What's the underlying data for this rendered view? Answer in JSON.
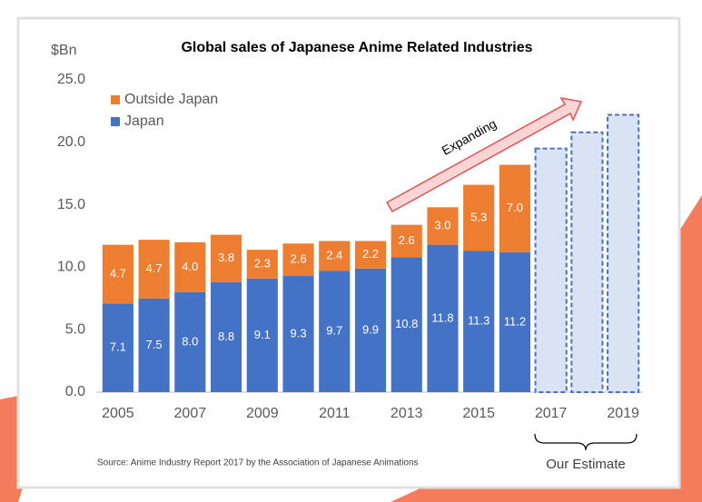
{
  "chart_data": {
    "type": "stacked_bar",
    "title": "Global sales of Japanese Anime Related Industries",
    "y_label": "$Bn",
    "categories": [
      "2005",
      null,
      "2007",
      null,
      "2009",
      null,
      "2011",
      null,
      "2013",
      null,
      "2015",
      null,
      "2017",
      null,
      "2019"
    ],
    "series": [
      {
        "name": "Japan",
        "color": "#4472c4",
        "values": [
          7.1,
          7.5,
          8.0,
          8.8,
          9.1,
          9.3,
          9.7,
          9.9,
          10.8,
          11.8,
          11.3,
          11.2,
          null,
          null,
          null
        ],
        "value_labels": [
          "7.1",
          "7.5",
          "8.0",
          "8.8",
          "9.1",
          "9.3",
          "9.7",
          "9.9",
          "10.8",
          "11.8",
          "11.3",
          "11.2",
          null,
          null,
          null
        ]
      },
      {
        "name": "Outside Japan",
        "color": "#ed7d31",
        "values": [
          4.7,
          4.7,
          4.0,
          3.8,
          2.3,
          2.6,
          2.4,
          2.2,
          2.6,
          3.0,
          5.3,
          7.0,
          null,
          null,
          null
        ],
        "value_labels": [
          "4.7",
          "4.7",
          "4.0",
          "3.8",
          "2.3",
          "2.6",
          "2.4",
          "2.2",
          "2.6",
          "3.0",
          "5.3",
          "7.0",
          null,
          null,
          null
        ]
      }
    ],
    "estimate": {
      "label": "Our Estimate",
      "color": "#dae3f3",
      "border_color": "#4472c4",
      "values": [
        null,
        null,
        null,
        null,
        null,
        null,
        null,
        null,
        null,
        null,
        null,
        null,
        19.5,
        20.8,
        22.2
      ]
    },
    "annotations": {
      "arrow_text": "Expanding",
      "source": "Source: Anime Industry Report 2017 by the Association of Japanese Animations"
    },
    "ylim": [
      0,
      25
    ],
    "yticks": [
      {
        "value": 0,
        "label": "0.0"
      },
      {
        "value": 5,
        "label": "5.0"
      },
      {
        "value": 10,
        "label": "10.0"
      },
      {
        "value": 15,
        "label": "15.0"
      },
      {
        "value": 20,
        "label": "20.0"
      },
      {
        "value": 25,
        "label": "25.0"
      }
    ],
    "legend": "top-left"
  }
}
